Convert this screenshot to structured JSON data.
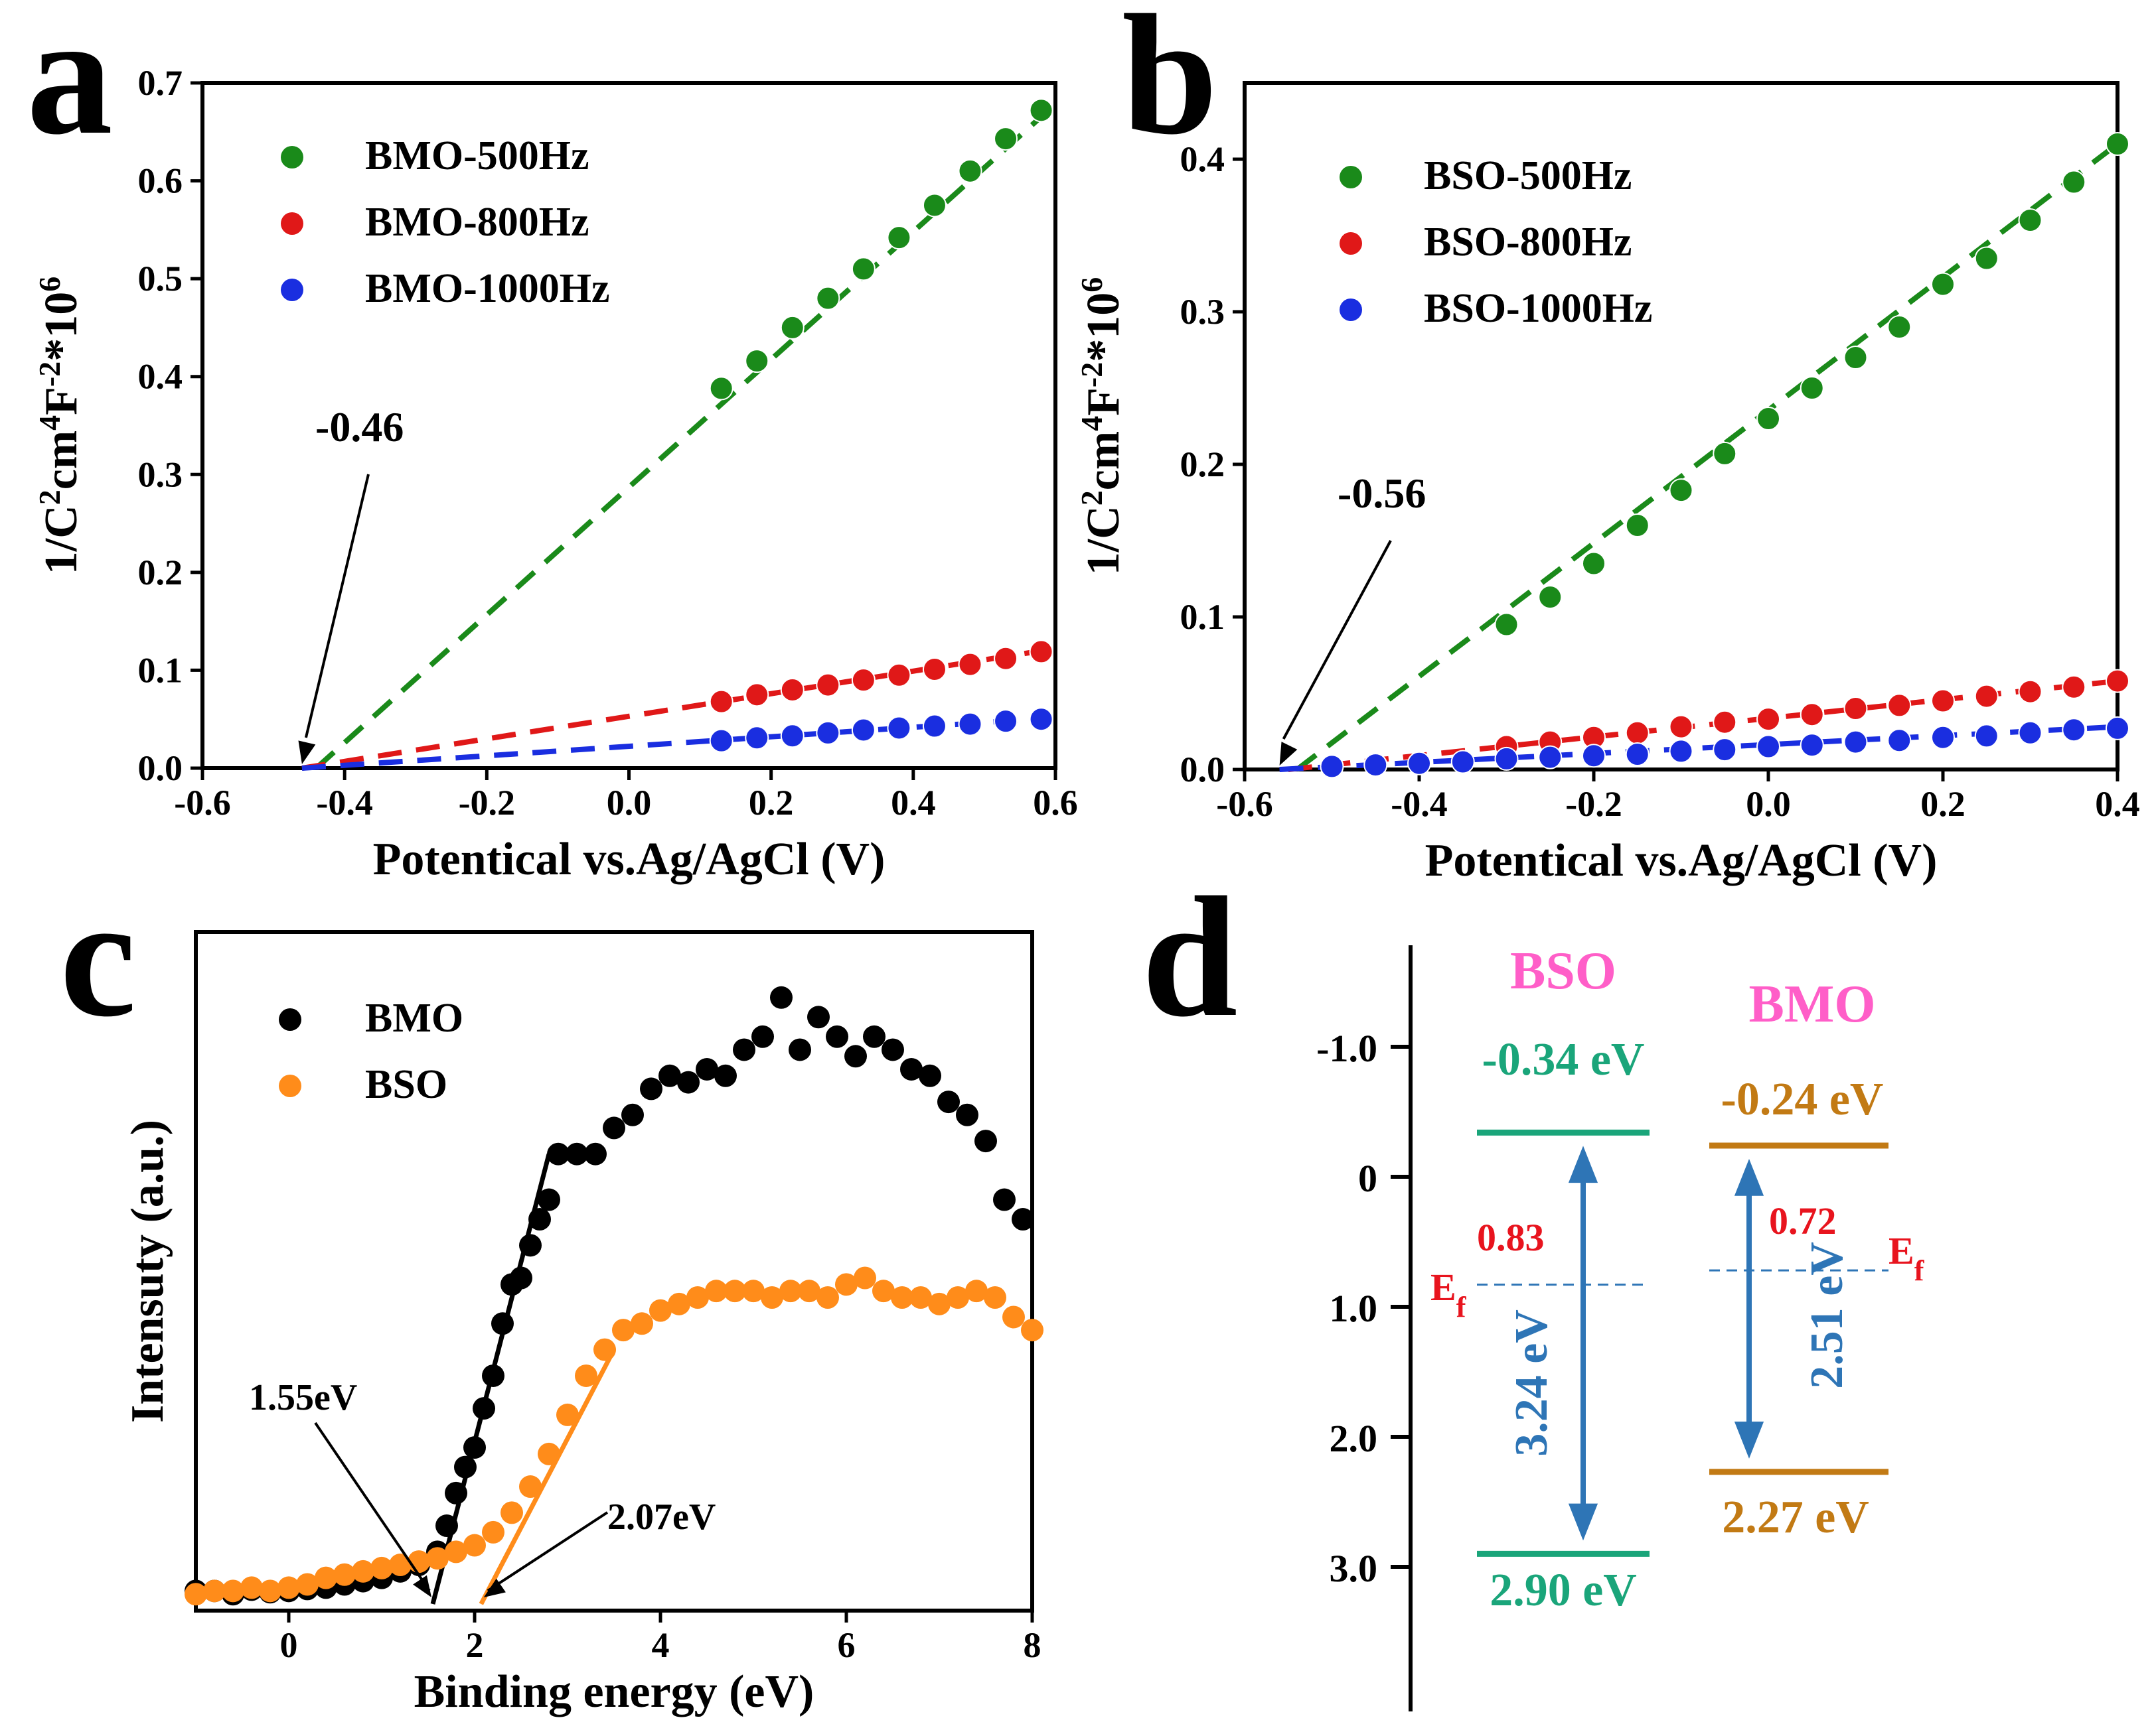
{
  "chart_data": [
    {
      "panel": "a",
      "type": "scatter",
      "xlabel": "Potentical vs.Ag/AgCl (V)",
      "ylabel_main": "1/C",
      "ylabel_sup1": "2",
      "ylabel_mid": "cm",
      "ylabel_sup2": "4",
      "ylabel_mid2": "F",
      "ylabel_sup3": "-2",
      "ylabel_end": "*10",
      "ylabel_sup4": "6",
      "xlim": [
        -0.6,
        0.6
      ],
      "ylim": [
        0.0,
        0.7
      ],
      "xticks": [
        -0.6,
        -0.4,
        -0.2,
        0.0,
        0.2,
        0.4,
        0.6
      ],
      "xtick_labels": [
        "-0.6",
        "-0.4",
        "-0.2",
        "0.0",
        "0.2",
        "0.4",
        "0.6"
      ],
      "yticks": [
        0.0,
        0.1,
        0.2,
        0.3,
        0.4,
        0.5,
        0.6,
        0.7
      ],
      "ytick_labels": [
        "0.0",
        "0.1",
        "0.2",
        "0.3",
        "0.4",
        "0.5",
        "0.6",
        "0.7"
      ],
      "annotation": "-0.46",
      "intercept": -0.46,
      "series": [
        {
          "name": "BMO-500Hz",
          "color": "#1a8a1a",
          "x": [
            0.13,
            0.18,
            0.23,
            0.28,
            0.33,
            0.38,
            0.43,
            0.48,
            0.53,
            0.58
          ],
          "y": [
            0.388,
            0.416,
            0.45,
            0.48,
            0.51,
            0.542,
            0.575,
            0.61,
            0.643,
            0.672
          ],
          "fit": [
            [
              -0.44,
              0.0
            ],
            [
              0.59,
              0.672
            ]
          ]
        },
        {
          "name": "BMO-800Hz",
          "color": "#e01818",
          "x": [
            0.13,
            0.18,
            0.23,
            0.28,
            0.33,
            0.38,
            0.43,
            0.48,
            0.53,
            0.58
          ],
          "y": [
            0.068,
            0.075,
            0.08,
            0.085,
            0.09,
            0.095,
            0.101,
            0.106,
            0.112,
            0.119
          ],
          "fit": [
            [
              -0.46,
              0.0
            ],
            [
              0.59,
              0.121
            ]
          ]
        },
        {
          "name": "BMO-1000Hz",
          "color": "#1a2ee0",
          "x": [
            0.13,
            0.18,
            0.23,
            0.28,
            0.33,
            0.38,
            0.43,
            0.48,
            0.53,
            0.58
          ],
          "y": [
            0.028,
            0.031,
            0.033,
            0.036,
            0.039,
            0.041,
            0.043,
            0.045,
            0.048,
            0.05
          ],
          "fit": [
            [
              -0.46,
              0.0
            ],
            [
              0.59,
              0.051
            ]
          ]
        }
      ]
    },
    {
      "panel": "b",
      "type": "scatter",
      "xlabel": "Potentical vs.Ag/AgCl (V)",
      "ylabel_main": "1/C",
      "ylabel_sup1": "2",
      "ylabel_mid": "cm",
      "ylabel_sup2": "4",
      "ylabel_mid2": "F",
      "ylabel_sup3": "-2",
      "ylabel_end": "*10",
      "ylabel_sup4": "6",
      "xlim": [
        -0.6,
        0.4
      ],
      "ylim": [
        0.0,
        0.45
      ],
      "xticks": [
        -0.6,
        -0.4,
        -0.2,
        0.0,
        0.2,
        0.4
      ],
      "xtick_labels": [
        "-0.6",
        "-0.4",
        "-0.2",
        "0.0",
        "0.2",
        "0.4"
      ],
      "yticks": [
        0.0,
        0.1,
        0.2,
        0.3,
        0.4
      ],
      "ytick_labels": [
        "0.0",
        "0.1",
        "0.2",
        "0.3",
        "0.4"
      ],
      "annotation": "-0.56",
      "intercept": -0.56,
      "series": [
        {
          "name": "BSO-500Hz",
          "color": "#1a8a1a",
          "x": [
            -0.3,
            -0.25,
            -0.2,
            -0.15,
            -0.1,
            -0.05,
            0.0,
            0.05,
            0.1,
            0.15,
            0.2,
            0.25,
            0.3,
            0.35,
            0.4
          ],
          "y": [
            0.095,
            0.113,
            0.135,
            0.16,
            0.183,
            0.207,
            0.23,
            0.25,
            0.27,
            0.29,
            0.318,
            0.335,
            0.36,
            0.385,
            0.41
          ],
          "fit": [
            [
              -0.54,
              0.0
            ],
            [
              0.4,
              0.41
            ]
          ]
        },
        {
          "name": "BSO-800Hz",
          "color": "#e01818",
          "x": [
            -0.3,
            -0.25,
            -0.2,
            -0.15,
            -0.1,
            -0.05,
            0.0,
            0.05,
            0.1,
            0.15,
            0.2,
            0.25,
            0.3,
            0.35,
            0.4
          ],
          "y": [
            0.015,
            0.018,
            0.021,
            0.024,
            0.028,
            0.031,
            0.033,
            0.036,
            0.04,
            0.042,
            0.045,
            0.048,
            0.051,
            0.054,
            0.058
          ],
          "fit": [
            [
              -0.55,
              0.0
            ],
            [
              0.4,
              0.058
            ]
          ]
        },
        {
          "name": "BSO-1000Hz",
          "color": "#1a2ee0",
          "x": [
            -0.5,
            -0.45,
            -0.4,
            -0.35,
            -0.3,
            -0.25,
            -0.2,
            -0.15,
            -0.1,
            -0.05,
            0.0,
            0.05,
            0.1,
            0.15,
            0.2,
            0.25,
            0.3,
            0.35,
            0.4
          ],
          "y": [
            0.002,
            0.003,
            0.004,
            0.005,
            0.007,
            0.008,
            0.009,
            0.01,
            0.012,
            0.013,
            0.015,
            0.016,
            0.018,
            0.019,
            0.021,
            0.022,
            0.024,
            0.026,
            0.027
          ],
          "fit": [
            [
              -0.56,
              0.0
            ],
            [
              0.4,
              0.028
            ]
          ]
        }
      ]
    },
    {
      "panel": "c",
      "type": "scatter",
      "xlabel": "Binding energy (eV)",
      "ylabel": "Intensuty (a.u.)",
      "xlim": [
        -1,
        8
      ],
      "ylim": [
        0,
        100
      ],
      "xticks": [
        0,
        2,
        4,
        6,
        8
      ],
      "xtick_labels": [
        "0",
        "2",
        "4",
        "6",
        "8"
      ],
      "annotations": [
        "1.55eV",
        "2.07eV"
      ],
      "edges": [
        1.55,
        2.07
      ],
      "series": [
        {
          "name": "BMO",
          "color": "#000000",
          "x": [
            -1.0,
            -0.8,
            -0.6,
            -0.4,
            -0.2,
            0.0,
            0.2,
            0.4,
            0.6,
            0.8,
            1.0,
            1.2,
            1.4,
            1.6,
            1.7,
            1.8,
            1.9,
            2.0,
            2.1,
            2.2,
            2.3,
            2.4,
            2.5,
            2.6,
            2.7,
            2.8,
            2.9,
            3.1,
            3.3,
            3.5,
            3.7,
            3.9,
            4.1,
            4.3,
            4.5,
            4.7,
            4.9,
            5.1,
            5.3,
            5.5,
            5.7,
            5.9,
            6.1,
            6.3,
            6.5,
            6.7,
            6.9,
            7.1,
            7.3,
            7.5,
            7.7,
            7.9
          ],
          "y": [
            2,
            2,
            1.5,
            2.2,
            1.8,
            2,
            2.3,
            2.5,
            3,
            3.5,
            4,
            5,
            6,
            8,
            12,
            17,
            21,
            24,
            30,
            35,
            43,
            49,
            50,
            55,
            59,
            62,
            69,
            69,
            69,
            73,
            75,
            79,
            81,
            80,
            82,
            81,
            85,
            87,
            93,
            85,
            90,
            87,
            84,
            87,
            85,
            82,
            81,
            77,
            75,
            71,
            62,
            59
          ],
          "fit": [
            [
              1.55,
              0.0
            ],
            [
              2.8,
              69.0
            ]
          ]
        },
        {
          "name": "BSO",
          "color": "#ff8c1a",
          "x": [
            -1.0,
            -0.8,
            -0.6,
            -0.4,
            -0.2,
            0.0,
            0.2,
            0.4,
            0.6,
            0.8,
            1.0,
            1.2,
            1.4,
            1.6,
            1.8,
            2.0,
            2.2,
            2.4,
            2.6,
            2.8,
            3.0,
            3.2,
            3.4,
            3.6,
            3.8,
            4.0,
            4.2,
            4.4,
            4.6,
            4.8,
            5.0,
            5.2,
            5.4,
            5.6,
            5.8,
            6.0,
            6.2,
            6.4,
            6.6,
            6.8,
            7.0,
            7.2,
            7.4,
            7.6,
            7.8,
            8.0
          ],
          "y": [
            1.5,
            2,
            2,
            2.5,
            2,
            2.5,
            3,
            4,
            4.5,
            5,
            5.5,
            6,
            6.5,
            7,
            8,
            9,
            11,
            14,
            18,
            23,
            29,
            35,
            39,
            42,
            43,
            45,
            46,
            47,
            48,
            48,
            48,
            47,
            48,
            48,
            47,
            49,
            50,
            48,
            47,
            47,
            46,
            47,
            48,
            47,
            44,
            42
          ],
          "fit": [
            [
              2.07,
              0.0
            ],
            [
              3.5,
              39.0
            ]
          ]
        }
      ]
    },
    {
      "panel": "d",
      "type": "diagram",
      "yticks": [
        -1.0,
        0.0,
        1.0,
        2.0,
        3.0
      ],
      "ytick_labels": [
        "-1.0",
        "0",
        "1.0",
        "2.0",
        "3.0"
      ],
      "ylim": [
        -1.8,
        4.0
      ],
      "materials": [
        {
          "name": "BSO",
          "name_color": "#ff5ec8",
          "cb": -0.34,
          "vb": 2.9,
          "ef": 0.83,
          "cb_label": "-0.34 eV",
          "vb_label": "2.90 eV",
          "gap_label": "3.24 eV",
          "ef_label": "0.83",
          "level_color": "#1aa57a",
          "arrow_color": "#2e75b6",
          "ef_text_color": "#e8141e"
        },
        {
          "name": "BMO",
          "name_color": "#ff5ec8",
          "cb": -0.24,
          "vb": 2.27,
          "ef": 0.72,
          "cb_label": "-0.24 eV",
          "vb_label": "2.27 eV",
          "gap_label": "2.51 eV",
          "ef_label": "0.72",
          "level_color": "#c27a14",
          "arrow_color": "#2e75b6",
          "ef_text_color": "#e8141e"
        }
      ],
      "ef_symbol": "E",
      "ef_sub": "f"
    }
  ],
  "panel_letters": [
    "a",
    "b",
    "c",
    "d"
  ]
}
